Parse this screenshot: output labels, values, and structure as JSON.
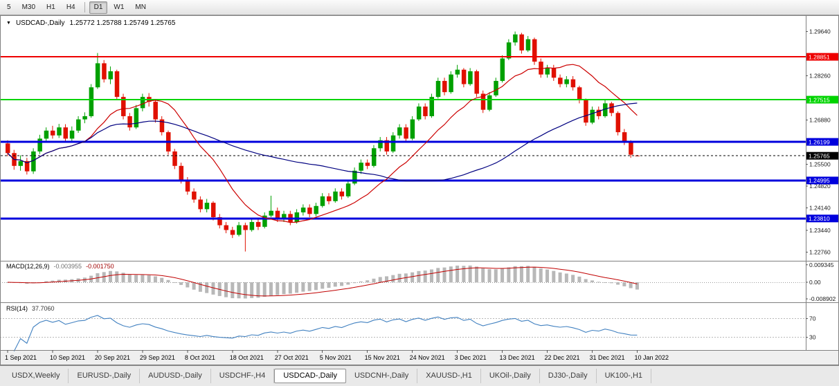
{
  "toolbar": {
    "separator_before_index": 4,
    "timeframes": [
      {
        "label": "5",
        "active": false
      },
      {
        "label": "M30",
        "active": false
      },
      {
        "label": "H1",
        "active": false
      },
      {
        "label": "H4",
        "active": false
      },
      {
        "label": "D1",
        "active": true
      },
      {
        "label": "W1",
        "active": false
      },
      {
        "label": "MN",
        "active": false
      }
    ]
  },
  "chart": {
    "title": {
      "symbol_period": "USDCAD-,Daily",
      "ohlc": "1.25772 1.25788 1.25749 1.25765"
    }
  },
  "chart_data": {
    "type": "candlestick",
    "symbol": "USDCAD-",
    "period": "Daily",
    "candle_colors": {
      "bull": "#00a000",
      "bear": "#e01000"
    },
    "y_axis": {
      "labels": [
        "1.29640",
        "1.28260",
        "1.26880",
        "1.25500",
        "1.24820",
        "1.24140",
        "1.23440",
        "1.22760"
      ]
    },
    "x_axis": {
      "labels": [
        "1 Sep 2021",
        "10 Sep 2021",
        "20 Sep 2021",
        "29 Sep 2021",
        "8 Oct 2021",
        "18 Oct 2021",
        "27 Oct 2021",
        "5 Nov 2021",
        "15 Nov 2021",
        "24 Nov 2021",
        "3 Dec 2021",
        "13 Dec 2021",
        "22 Dec 2021",
        "31 Dec 2021",
        "10 Jan 2022"
      ],
      "label_indices": [
        0,
        7,
        14,
        21,
        28,
        35,
        42,
        49,
        56,
        63,
        70,
        77,
        84,
        91,
        98
      ]
    },
    "horizontal_lines": [
      {
        "name": "resistance-line-red",
        "price": 1.28851,
        "label": "1.28851",
        "color": "#ee0000",
        "width": 2,
        "dash": ""
      },
      {
        "name": "resistance-line-green",
        "price": 1.27515,
        "label": "1.27515",
        "color": "#00d400",
        "width": 2,
        "dash": ""
      },
      {
        "name": "support-line-blue-1",
        "price": 1.26199,
        "label": "1.26199",
        "color": "#0000dd",
        "width": 3,
        "dash": ""
      },
      {
        "name": "bid-price-line",
        "price": 1.25765,
        "label": "1.25765",
        "color": "#000000",
        "width": 1,
        "dash": "3,3"
      },
      {
        "name": "support-line-blue-2",
        "price": 1.24995,
        "label": "1.24995",
        "color": "#0000dd",
        "width": 3,
        "dash": ""
      },
      {
        "name": "support-line-blue-3",
        "price": 1.2381,
        "label": "1.23810",
        "color": "#0000dd",
        "width": 3,
        "dash": ""
      }
    ],
    "moving_averages": [
      {
        "name": "ma-fast",
        "period": 13,
        "color": "#cc0000"
      },
      {
        "name": "ma-slow",
        "period": 45,
        "color": "#000080"
      }
    ],
    "macd": {
      "label": "MACD(12,26,9)",
      "fast": 12,
      "slow": 26,
      "signal": 9,
      "main_value": "-0.003955",
      "signal_value": "-0.001750",
      "axis_labels": [
        "0.009345",
        "0.00",
        "-0.008902"
      ],
      "histogram_color": "#b8b8b8",
      "signal_color": "#c00000"
    },
    "rsi": {
      "label": "RSI(14)",
      "period": 14,
      "value": "37.7060",
      "levels": [
        70,
        30
      ],
      "axis_labels": [
        "70",
        "30"
      ],
      "line_color": "#4080c0"
    },
    "ohlc": [
      [
        1.2615,
        1.2625,
        1.2575,
        1.2585
      ],
      [
        1.2585,
        1.2595,
        1.2533,
        1.2545
      ],
      [
        1.2545,
        1.2578,
        1.253,
        1.256
      ],
      [
        1.256,
        1.257,
        1.2518,
        1.2528
      ],
      [
        1.2528,
        1.26,
        1.252,
        1.259
      ],
      [
        1.259,
        1.2642,
        1.2582,
        1.263
      ],
      [
        1.263,
        1.2665,
        1.262,
        1.2655
      ],
      [
        1.2655,
        1.267,
        1.263,
        1.264
      ],
      [
        1.264,
        1.2676,
        1.2632,
        1.2665
      ],
      [
        1.2665,
        1.2675,
        1.262,
        1.263
      ],
      [
        1.263,
        1.2668,
        1.2622,
        1.2655
      ],
      [
        1.2655,
        1.27,
        1.2648,
        1.269
      ],
      [
        1.269,
        1.2712,
        1.2678,
        1.27
      ],
      [
        1.27,
        1.28,
        1.2695,
        1.279
      ],
      [
        1.279,
        1.2897,
        1.2785,
        1.2865
      ],
      [
        1.2865,
        1.2875,
        1.2805,
        1.2815
      ],
      [
        1.2815,
        1.2855,
        1.28,
        1.284
      ],
      [
        1.284,
        1.2845,
        1.275,
        1.276
      ],
      [
        1.276,
        1.277,
        1.269,
        1.27
      ],
      [
        1.27,
        1.271,
        1.2655,
        1.2665
      ],
      [
        1.2665,
        1.2735,
        1.266,
        1.2725
      ],
      [
        1.2725,
        1.277,
        1.2715,
        1.276
      ],
      [
        1.276,
        1.2772,
        1.273,
        1.2745
      ],
      [
        1.2745,
        1.275,
        1.268,
        1.269
      ],
      [
        1.269,
        1.27,
        1.264,
        1.265
      ],
      [
        1.265,
        1.2655,
        1.258,
        1.259
      ],
      [
        1.259,
        1.2598,
        1.2535,
        1.2545
      ],
      [
        1.2545,
        1.2555,
        1.249,
        1.25
      ],
      [
        1.25,
        1.251,
        1.2455,
        1.2465
      ],
      [
        1.2465,
        1.2475,
        1.243,
        1.244
      ],
      [
        1.244,
        1.245,
        1.24,
        1.241
      ],
      [
        1.241,
        1.2442,
        1.24,
        1.243
      ],
      [
        1.243,
        1.2435,
        1.2375,
        1.2385
      ],
      [
        1.2385,
        1.2395,
        1.235,
        1.236
      ],
      [
        1.236,
        1.237,
        1.2335,
        1.2345
      ],
      [
        1.2345,
        1.2355,
        1.232,
        1.233
      ],
      [
        1.233,
        1.237,
        1.2325,
        1.236
      ],
      [
        1.236,
        1.2368,
        1.2278,
        1.2345
      ],
      [
        1.2345,
        1.238,
        1.234,
        1.237
      ],
      [
        1.237,
        1.238,
        1.2345,
        1.2355
      ],
      [
        1.2355,
        1.24,
        1.235,
        1.239
      ],
      [
        1.239,
        1.2452,
        1.2385,
        1.2405
      ],
      [
        1.2405,
        1.2415,
        1.237,
        1.238
      ],
      [
        1.238,
        1.2405,
        1.237,
        1.2395
      ],
      [
        1.2395,
        1.2405,
        1.236,
        1.237
      ],
      [
        1.237,
        1.241,
        1.2365,
        1.24
      ],
      [
        1.24,
        1.2425,
        1.239,
        1.2415
      ],
      [
        1.2415,
        1.2425,
        1.2385,
        1.2395
      ],
      [
        1.2395,
        1.243,
        1.2388,
        1.242
      ],
      [
        1.242,
        1.246,
        1.2415,
        1.245
      ],
      [
        1.245,
        1.246,
        1.2425,
        1.2435
      ],
      [
        1.2435,
        1.2475,
        1.243,
        1.2465
      ],
      [
        1.2465,
        1.2475,
        1.244,
        1.245
      ],
      [
        1.245,
        1.25,
        1.2445,
        1.249
      ],
      [
        1.249,
        1.254,
        1.2485,
        1.253
      ],
      [
        1.253,
        1.2565,
        1.252,
        1.2555
      ],
      [
        1.2555,
        1.2565,
        1.2535,
        1.2545
      ],
      [
        1.2545,
        1.261,
        1.254,
        1.26
      ],
      [
        1.26,
        1.2635,
        1.259,
        1.2625
      ],
      [
        1.2625,
        1.2635,
        1.258,
        1.259
      ],
      [
        1.259,
        1.265,
        1.2585,
        1.264
      ],
      [
        1.264,
        1.2675,
        1.263,
        1.2665
      ],
      [
        1.2665,
        1.2675,
        1.262,
        1.263
      ],
      [
        1.263,
        1.27,
        1.2625,
        1.269
      ],
      [
        1.269,
        1.274,
        1.2685,
        1.273
      ],
      [
        1.273,
        1.274,
        1.269,
        1.27
      ],
      [
        1.27,
        1.277,
        1.2695,
        1.276
      ],
      [
        1.276,
        1.282,
        1.2755,
        1.281
      ],
      [
        1.281,
        1.282,
        1.2765,
        1.2775
      ],
      [
        1.2775,
        1.284,
        1.277,
        1.283
      ],
      [
        1.283,
        1.286,
        1.282,
        1.2845
      ],
      [
        1.2845,
        1.285,
        1.279,
        1.28
      ],
      [
        1.28,
        1.285,
        1.2795,
        1.284
      ],
      [
        1.284,
        1.2845,
        1.276,
        1.277
      ],
      [
        1.277,
        1.278,
        1.271,
        1.272
      ],
      [
        1.272,
        1.2775,
        1.2715,
        1.2765
      ],
      [
        1.2765,
        1.282,
        1.276,
        1.281
      ],
      [
        1.281,
        1.289,
        1.2805,
        1.288
      ],
      [
        1.288,
        1.294,
        1.2875,
        1.293
      ],
      [
        1.293,
        1.2964,
        1.292,
        1.2955
      ],
      [
        1.2955,
        1.296,
        1.2895,
        1.2905
      ],
      [
        1.2905,
        1.295,
        1.29,
        1.294
      ],
      [
        1.294,
        1.2945,
        1.286,
        1.287
      ],
      [
        1.287,
        1.288,
        1.282,
        1.283
      ],
      [
        1.283,
        1.286,
        1.282,
        1.285
      ],
      [
        1.285,
        1.286,
        1.281,
        1.282
      ],
      [
        1.282,
        1.283,
        1.279,
        1.28
      ],
      [
        1.28,
        1.2825,
        1.279,
        1.2815
      ],
      [
        1.2815,
        1.2825,
        1.278,
        1.279
      ],
      [
        1.279,
        1.2795,
        1.274,
        1.275
      ],
      [
        1.275,
        1.2755,
        1.267,
        1.268
      ],
      [
        1.268,
        1.273,
        1.2675,
        1.272
      ],
      [
        1.272,
        1.273,
        1.269,
        1.27
      ],
      [
        1.27,
        1.275,
        1.2695,
        1.274
      ],
      [
        1.274,
        1.2745,
        1.27,
        1.271
      ],
      [
        1.271,
        1.2715,
        1.264,
        1.265
      ],
      [
        1.265,
        1.266,
        1.261,
        1.262
      ],
      [
        1.262,
        1.2625,
        1.257,
        1.258
      ],
      [
        1.25772,
        1.25788,
        1.25749,
        1.25765
      ]
    ]
  },
  "tabs": {
    "active_index": 4,
    "items": [
      "USDX,Weekly",
      "EURUSD-,Daily",
      "AUDUSD-,Daily",
      "USDCHF-,H4",
      "USDCAD-,Daily",
      "USDCNH-,Daily",
      "XAUUSD-,H1",
      "UKOil-,Daily",
      "DJ30-,Daily",
      "UK100-,H1"
    ]
  }
}
